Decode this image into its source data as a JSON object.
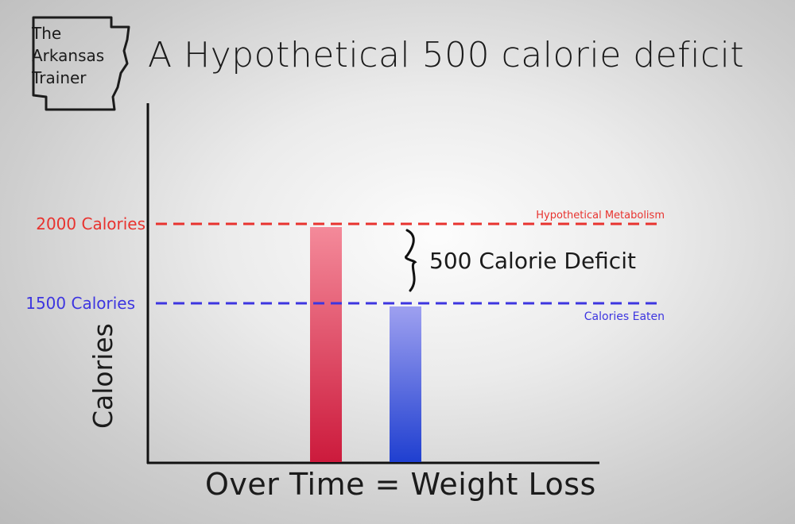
{
  "logo": {
    "lines": [
      "The",
      "Arkansas",
      "Trainer"
    ]
  },
  "chart_data": {
    "type": "bar",
    "title": "A Hypothetical 500 calorie deficit",
    "xlabel": "Over Time = Weight Loss",
    "ylabel": "Calories",
    "categories": [
      "Hypothetical Metabolism",
      "Calories Eaten"
    ],
    "values": [
      2000,
      1500
    ],
    "ylim": [
      0,
      3000
    ],
    "reference_lines": [
      {
        "value": 2000,
        "label": "2000 Calories",
        "name": "Hypothetical Metabolism",
        "color": "#e8332f"
      },
      {
        "value": 1500,
        "label": "1500 Calories",
        "name": "Calories Eaten",
        "color": "#3d35e0"
      }
    ],
    "annotation": "500 Calorie Deficit",
    "colors": {
      "bar1_top": "#f48a9a",
      "bar1_bottom": "#cc1a3c",
      "bar2_top": "#9ea0f0",
      "bar2_bottom": "#1f3fd0"
    }
  }
}
